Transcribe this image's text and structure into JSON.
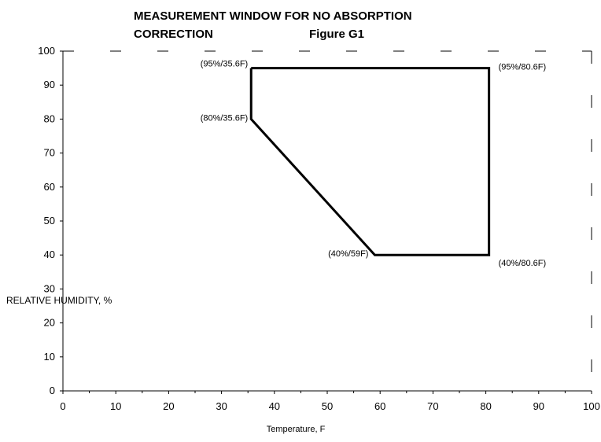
{
  "chart_data": {
    "type": "line",
    "title_line1": "MEASUREMENT WINDOW FOR NO ABSORPTION",
    "title_line2": "CORRECTION",
    "figure_label": "Figure G1",
    "xlabel": "Temperature, F",
    "ylabel": "RELATIVE HUMIDITY, %",
    "xlim": [
      0,
      100
    ],
    "ylim": [
      0,
      100
    ],
    "x_ticks": [
      "0",
      "10",
      "20",
      "30",
      "40",
      "50",
      "60",
      "70",
      "80",
      "90",
      "100"
    ],
    "y_ticks": [
      "0",
      "10",
      "20",
      "30",
      "40",
      "50",
      "60",
      "70",
      "80",
      "90",
      "100"
    ],
    "series": [
      {
        "x": [
          35.6,
          80.6,
          80.6,
          59,
          35.6,
          35.6
        ],
        "y": [
          95,
          95,
          40,
          40,
          80,
          95
        ]
      }
    ],
    "annotations": [
      {
        "text": "(95%/35.6F)",
        "x": 35.6,
        "y": 95
      },
      {
        "text": "(95%/80.6F)",
        "x": 80.6,
        "y": 95
      },
      {
        "text": "(80%/35.6F)",
        "x": 35.6,
        "y": 80
      },
      {
        "text": "(40%/59F)",
        "x": 59,
        "y": 40
      },
      {
        "text": "(40%/80.6F)",
        "x": 80.6,
        "y": 40
      }
    ],
    "grid": false
  }
}
